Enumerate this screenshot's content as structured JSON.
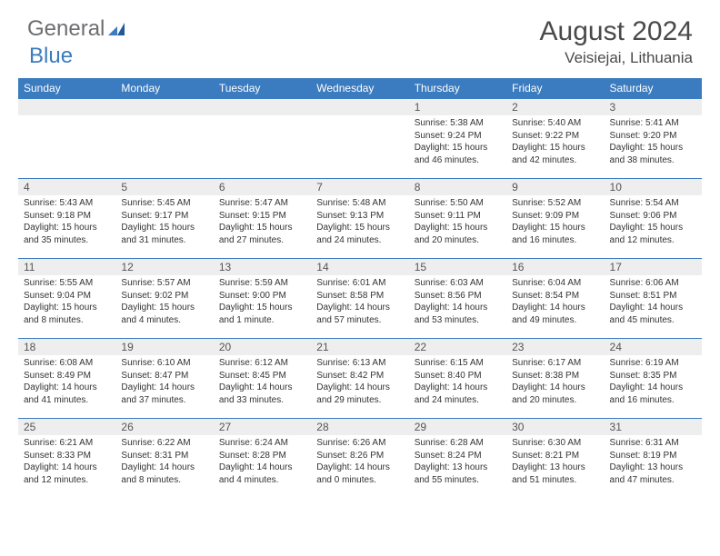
{
  "brand": {
    "part1": "General",
    "part2": "Blue"
  },
  "title": "August 2024",
  "location": "Veisiejai, Lithuania",
  "colors": {
    "accent": "#3b7bbf",
    "row_shade": "#eeeeee",
    "text": "#333333",
    "brand_gray": "#6d6e71"
  },
  "days_of_week": [
    "Sunday",
    "Monday",
    "Tuesday",
    "Wednesday",
    "Thursday",
    "Friday",
    "Saturday"
  ],
  "calendar": {
    "first_weekday_index": 4,
    "num_days": 31,
    "cells": [
      {
        "n": 1,
        "sunrise": "5:38 AM",
        "sunset": "9:24 PM",
        "daylight": "15 hours and 46 minutes."
      },
      {
        "n": 2,
        "sunrise": "5:40 AM",
        "sunset": "9:22 PM",
        "daylight": "15 hours and 42 minutes."
      },
      {
        "n": 3,
        "sunrise": "5:41 AM",
        "sunset": "9:20 PM",
        "daylight": "15 hours and 38 minutes."
      },
      {
        "n": 4,
        "sunrise": "5:43 AM",
        "sunset": "9:18 PM",
        "daylight": "15 hours and 35 minutes."
      },
      {
        "n": 5,
        "sunrise": "5:45 AM",
        "sunset": "9:17 PM",
        "daylight": "15 hours and 31 minutes."
      },
      {
        "n": 6,
        "sunrise": "5:47 AM",
        "sunset": "9:15 PM",
        "daylight": "15 hours and 27 minutes."
      },
      {
        "n": 7,
        "sunrise": "5:48 AM",
        "sunset": "9:13 PM",
        "daylight": "15 hours and 24 minutes."
      },
      {
        "n": 8,
        "sunrise": "5:50 AM",
        "sunset": "9:11 PM",
        "daylight": "15 hours and 20 minutes."
      },
      {
        "n": 9,
        "sunrise": "5:52 AM",
        "sunset": "9:09 PM",
        "daylight": "15 hours and 16 minutes."
      },
      {
        "n": 10,
        "sunrise": "5:54 AM",
        "sunset": "9:06 PM",
        "daylight": "15 hours and 12 minutes."
      },
      {
        "n": 11,
        "sunrise": "5:55 AM",
        "sunset": "9:04 PM",
        "daylight": "15 hours and 8 minutes."
      },
      {
        "n": 12,
        "sunrise": "5:57 AM",
        "sunset": "9:02 PM",
        "daylight": "15 hours and 4 minutes."
      },
      {
        "n": 13,
        "sunrise": "5:59 AM",
        "sunset": "9:00 PM",
        "daylight": "15 hours and 1 minute."
      },
      {
        "n": 14,
        "sunrise": "6:01 AM",
        "sunset": "8:58 PM",
        "daylight": "14 hours and 57 minutes."
      },
      {
        "n": 15,
        "sunrise": "6:03 AM",
        "sunset": "8:56 PM",
        "daylight": "14 hours and 53 minutes."
      },
      {
        "n": 16,
        "sunrise": "6:04 AM",
        "sunset": "8:54 PM",
        "daylight": "14 hours and 49 minutes."
      },
      {
        "n": 17,
        "sunrise": "6:06 AM",
        "sunset": "8:51 PM",
        "daylight": "14 hours and 45 minutes."
      },
      {
        "n": 18,
        "sunrise": "6:08 AM",
        "sunset": "8:49 PM",
        "daylight": "14 hours and 41 minutes."
      },
      {
        "n": 19,
        "sunrise": "6:10 AM",
        "sunset": "8:47 PM",
        "daylight": "14 hours and 37 minutes."
      },
      {
        "n": 20,
        "sunrise": "6:12 AM",
        "sunset": "8:45 PM",
        "daylight": "14 hours and 33 minutes."
      },
      {
        "n": 21,
        "sunrise": "6:13 AM",
        "sunset": "8:42 PM",
        "daylight": "14 hours and 29 minutes."
      },
      {
        "n": 22,
        "sunrise": "6:15 AM",
        "sunset": "8:40 PM",
        "daylight": "14 hours and 24 minutes."
      },
      {
        "n": 23,
        "sunrise": "6:17 AM",
        "sunset": "8:38 PM",
        "daylight": "14 hours and 20 minutes."
      },
      {
        "n": 24,
        "sunrise": "6:19 AM",
        "sunset": "8:35 PM",
        "daylight": "14 hours and 16 minutes."
      },
      {
        "n": 25,
        "sunrise": "6:21 AM",
        "sunset": "8:33 PM",
        "daylight": "14 hours and 12 minutes."
      },
      {
        "n": 26,
        "sunrise": "6:22 AM",
        "sunset": "8:31 PM",
        "daylight": "14 hours and 8 minutes."
      },
      {
        "n": 27,
        "sunrise": "6:24 AM",
        "sunset": "8:28 PM",
        "daylight": "14 hours and 4 minutes."
      },
      {
        "n": 28,
        "sunrise": "6:26 AM",
        "sunset": "8:26 PM",
        "daylight": "14 hours and 0 minutes."
      },
      {
        "n": 29,
        "sunrise": "6:28 AM",
        "sunset": "8:24 PM",
        "daylight": "13 hours and 55 minutes."
      },
      {
        "n": 30,
        "sunrise": "6:30 AM",
        "sunset": "8:21 PM",
        "daylight": "13 hours and 51 minutes."
      },
      {
        "n": 31,
        "sunrise": "6:31 AM",
        "sunset": "8:19 PM",
        "daylight": "13 hours and 47 minutes."
      }
    ]
  },
  "labels": {
    "sunrise": "Sunrise:",
    "sunset": "Sunset:",
    "daylight": "Daylight:"
  }
}
